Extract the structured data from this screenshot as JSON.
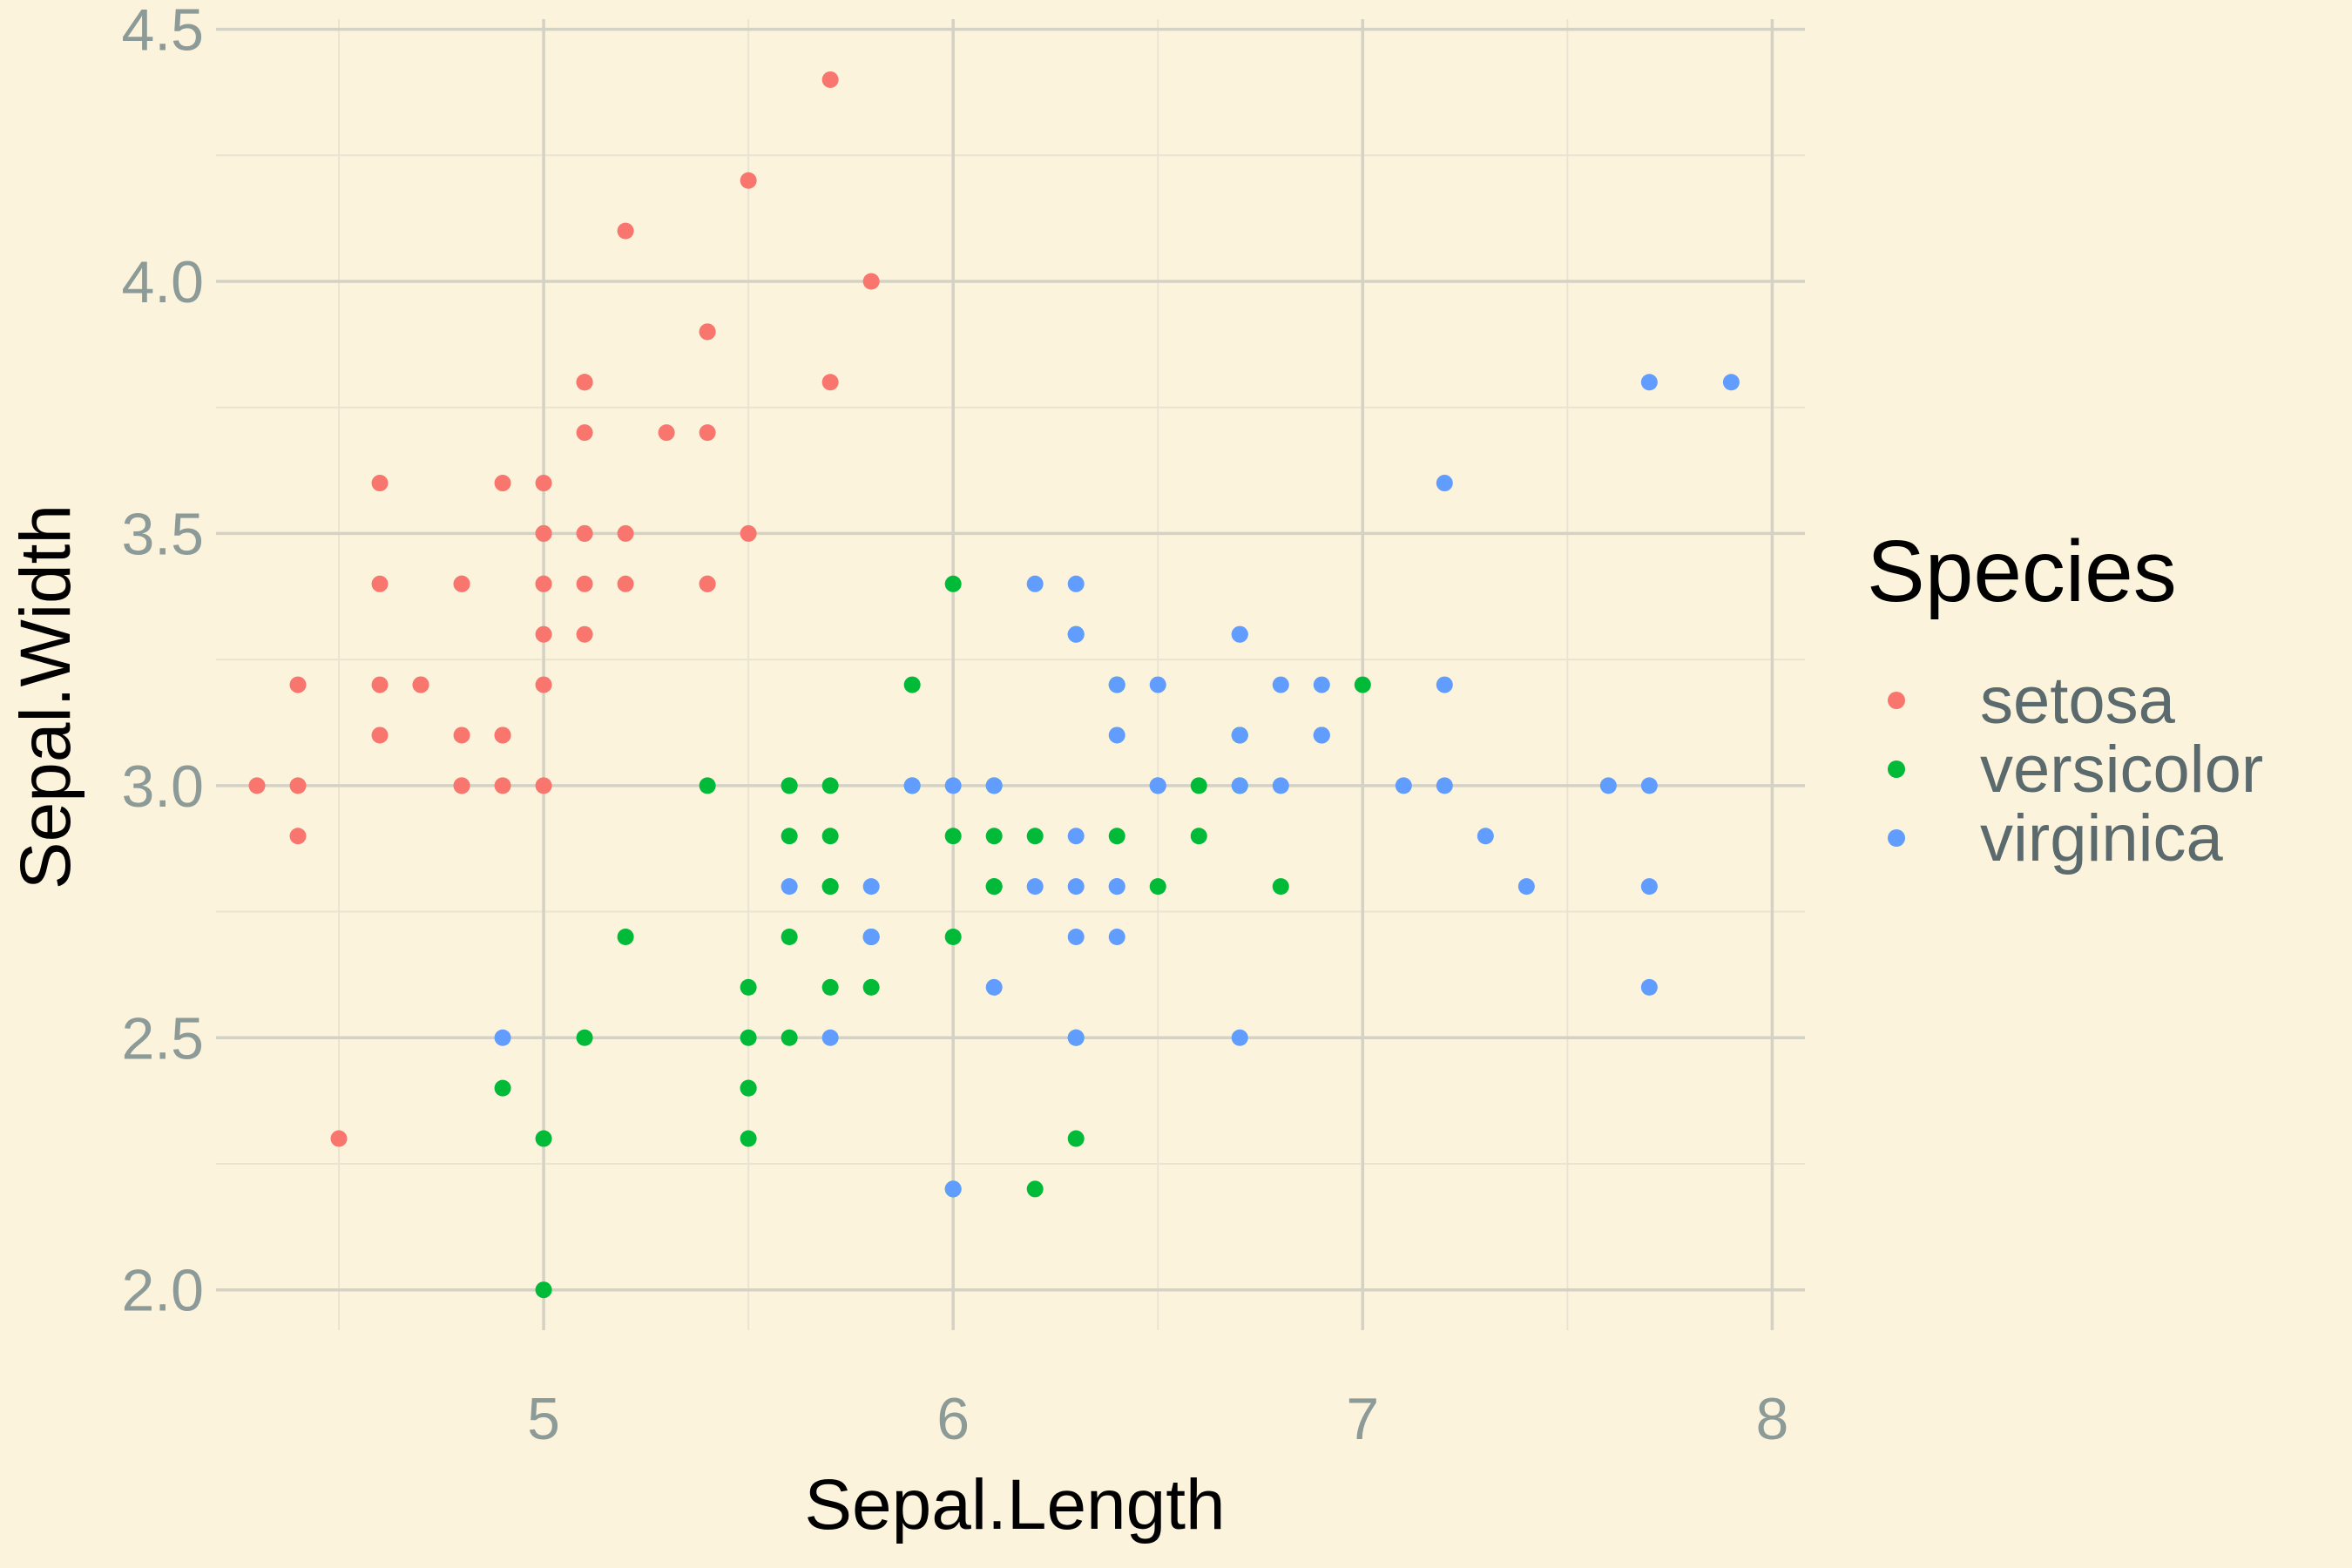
{
  "chart_data": {
    "type": "scatter",
    "xlabel": "Sepal.Length",
    "ylabel": "Sepal.Width",
    "xlim": [
      4.2,
      8.08
    ],
    "ylim": [
      1.92,
      4.52
    ],
    "x_ticks": [
      "5",
      "6",
      "7",
      "8"
    ],
    "y_ticks": [
      "2.0",
      "2.5",
      "3.0",
      "3.5",
      "4.0",
      "4.5"
    ],
    "grid": true,
    "legend": {
      "title": "Species",
      "position": "right"
    },
    "series": [
      {
        "name": "setosa",
        "color": "#f8766d",
        "points": [
          [
            5.1,
            3.5
          ],
          [
            4.9,
            3.0
          ],
          [
            4.7,
            3.2
          ],
          [
            4.6,
            3.1
          ],
          [
            5.0,
            3.6
          ],
          [
            5.4,
            3.9
          ],
          [
            4.6,
            3.4
          ],
          [
            5.0,
            3.4
          ],
          [
            4.4,
            2.9
          ],
          [
            4.9,
            3.1
          ],
          [
            5.4,
            3.7
          ],
          [
            4.8,
            3.4
          ],
          [
            4.8,
            3.0
          ],
          [
            4.3,
            3.0
          ],
          [
            5.8,
            4.0
          ],
          [
            5.7,
            4.4
          ],
          [
            5.4,
            3.9
          ],
          [
            5.1,
            3.5
          ],
          [
            5.7,
            3.8
          ],
          [
            5.1,
            3.8
          ],
          [
            5.4,
            3.4
          ],
          [
            5.1,
            3.7
          ],
          [
            4.6,
            3.6
          ],
          [
            5.1,
            3.3
          ],
          [
            4.8,
            3.4
          ],
          [
            5.0,
            3.0
          ],
          [
            5.0,
            3.4
          ],
          [
            5.2,
            3.5
          ],
          [
            5.2,
            3.4
          ],
          [
            4.7,
            3.2
          ],
          [
            4.8,
            3.1
          ],
          [
            5.4,
            3.4
          ],
          [
            5.2,
            4.1
          ],
          [
            5.5,
            4.2
          ],
          [
            4.9,
            3.1
          ],
          [
            5.0,
            3.2
          ],
          [
            5.5,
            3.5
          ],
          [
            4.9,
            3.6
          ],
          [
            4.4,
            3.0
          ],
          [
            5.1,
            3.4
          ],
          [
            5.0,
            3.5
          ],
          [
            4.5,
            2.3
          ],
          [
            4.4,
            3.2
          ],
          [
            5.0,
            3.5
          ],
          [
            5.1,
            3.8
          ],
          [
            4.8,
            3.0
          ],
          [
            5.1,
            3.8
          ],
          [
            4.6,
            3.2
          ],
          [
            5.3,
            3.7
          ],
          [
            5.0,
            3.3
          ]
        ]
      },
      {
        "name": "versicolor",
        "color": "#00ba38",
        "points": [
          [
            7.0,
            3.2
          ],
          [
            6.4,
            3.2
          ],
          [
            6.9,
            3.1
          ],
          [
            5.5,
            2.3
          ],
          [
            6.5,
            2.8
          ],
          [
            5.7,
            2.8
          ],
          [
            6.3,
            3.3
          ],
          [
            4.9,
            2.4
          ],
          [
            6.6,
            2.9
          ],
          [
            5.2,
            2.7
          ],
          [
            5.0,
            2.0
          ],
          [
            5.9,
            3.0
          ],
          [
            6.0,
            2.2
          ],
          [
            6.1,
            2.9
          ],
          [
            5.6,
            2.9
          ],
          [
            6.7,
            3.1
          ],
          [
            5.6,
            3.0
          ],
          [
            5.8,
            2.7
          ],
          [
            6.2,
            2.2
          ],
          [
            5.6,
            2.5
          ],
          [
            5.9,
            3.2
          ],
          [
            6.1,
            2.8
          ],
          [
            6.3,
            2.5
          ],
          [
            6.1,
            2.8
          ],
          [
            6.4,
            2.9
          ],
          [
            6.6,
            3.0
          ],
          [
            6.8,
            2.8
          ],
          [
            6.7,
            3.0
          ],
          [
            6.0,
            2.9
          ],
          [
            5.7,
            2.6
          ],
          [
            5.5,
            2.4
          ],
          [
            5.5,
            2.4
          ],
          [
            5.8,
            2.7
          ],
          [
            6.0,
            2.7
          ],
          [
            5.4,
            3.0
          ],
          [
            6.0,
            3.4
          ],
          [
            6.7,
            3.1
          ],
          [
            6.3,
            2.3
          ],
          [
            5.6,
            3.0
          ],
          [
            5.5,
            2.5
          ],
          [
            5.5,
            2.6
          ],
          [
            6.1,
            3.0
          ],
          [
            5.8,
            2.6
          ],
          [
            5.0,
            2.3
          ],
          [
            5.6,
            2.7
          ],
          [
            5.7,
            3.0
          ],
          [
            5.7,
            2.9
          ],
          [
            6.2,
            2.9
          ],
          [
            5.1,
            2.5
          ],
          [
            5.7,
            2.8
          ]
        ]
      },
      {
        "name": "virginica",
        "color": "#619cff",
        "points": [
          [
            6.3,
            3.3
          ],
          [
            5.8,
            2.7
          ],
          [
            7.1,
            3.0
          ],
          [
            6.3,
            2.9
          ],
          [
            6.5,
            3.0
          ],
          [
            7.6,
            3.0
          ],
          [
            4.9,
            2.5
          ],
          [
            7.3,
            2.9
          ],
          [
            6.7,
            2.5
          ],
          [
            7.2,
            3.6
          ],
          [
            6.5,
            3.2
          ],
          [
            6.4,
            2.7
          ],
          [
            6.8,
            3.0
          ],
          [
            5.7,
            2.5
          ],
          [
            5.8,
            2.8
          ],
          [
            6.4,
            3.2
          ],
          [
            6.5,
            3.0
          ],
          [
            7.7,
            3.8
          ],
          [
            7.7,
            2.6
          ],
          [
            6.0,
            2.2
          ],
          [
            6.9,
            3.2
          ],
          [
            5.6,
            2.8
          ],
          [
            7.7,
            2.8
          ],
          [
            6.3,
            2.7
          ],
          [
            6.7,
            3.3
          ],
          [
            7.2,
            3.2
          ],
          [
            6.2,
            2.8
          ],
          [
            6.1,
            3.0
          ],
          [
            6.4,
            2.8
          ],
          [
            7.2,
            3.0
          ],
          [
            7.4,
            2.8
          ],
          [
            7.9,
            3.8
          ],
          [
            6.4,
            2.8
          ],
          [
            6.3,
            2.8
          ],
          [
            6.1,
            2.6
          ],
          [
            7.7,
            3.0
          ],
          [
            6.3,
            3.4
          ],
          [
            6.4,
            3.1
          ],
          [
            6.0,
            3.0
          ],
          [
            6.9,
            3.1
          ],
          [
            6.7,
            3.1
          ],
          [
            6.9,
            3.1
          ],
          [
            5.8,
            2.7
          ],
          [
            6.8,
            3.2
          ],
          [
            6.7,
            3.3
          ],
          [
            6.7,
            3.0
          ],
          [
            6.3,
            2.5
          ],
          [
            6.5,
            3.0
          ],
          [
            6.2,
            3.4
          ],
          [
            5.9,
            3.0
          ]
        ]
      }
    ]
  }
}
